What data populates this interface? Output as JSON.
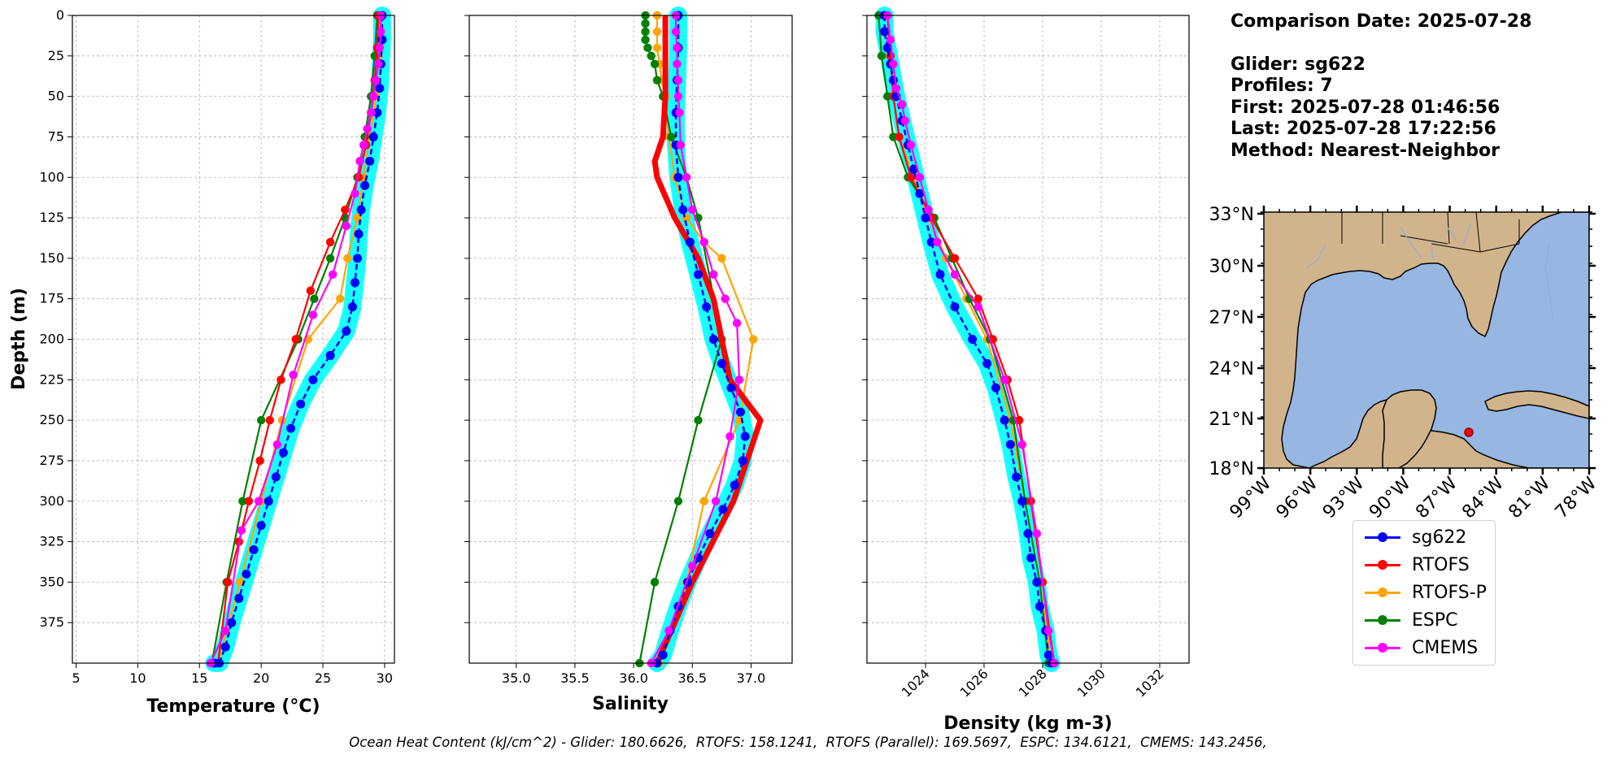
{
  "info": {
    "comparison_date": "Comparison Date: 2025-07-28",
    "glider": "Glider: sg622",
    "profiles": "Profiles: 7",
    "first": "First: 2025-07-28 01:46:56",
    "last": "Last: 2025-07-28 17:22:56",
    "method": "Method: Nearest-Neighbor"
  },
  "footer": "Ocean Heat Content (kJ/cm^2) - Glider: 180.6626,  RTOFS: 158.1241,  RTOFS (Parallel): 169.5697,  ESPC: 134.6121,  CMEMS: 143.2456,",
  "legend": [
    {
      "label": "sg622",
      "color": "#0000ff"
    },
    {
      "label": "RTOFS",
      "color": "#ff0000"
    },
    {
      "label": "RTOFS-P",
      "color": "#ffa500"
    },
    {
      "label": "ESPC",
      "color": "#008000"
    },
    {
      "label": "CMEMS",
      "color": "#ff00ff"
    }
  ],
  "chart_data": [
    {
      "type": "line",
      "xlabel": "Temperature (°C)",
      "ylabel": "Depth (m)",
      "xlim": [
        4.7,
        30.8
      ],
      "ylim": [
        400,
        0
      ],
      "xticks": [
        5,
        10,
        15,
        20,
        25,
        30
      ],
      "yticks": [
        0,
        25,
        50,
        75,
        100,
        125,
        150,
        175,
        200,
        225,
        250,
        275,
        300,
        325,
        350,
        375
      ],
      "grid": true,
      "series": [
        {
          "name": "sg622",
          "color": "#0000ff",
          "band_color": "#00ffff",
          "x": [
            29.8,
            29.8,
            29.7,
            29.6,
            29.4,
            29.1,
            28.8,
            28.4,
            28.1,
            27.9,
            27.8,
            27.6,
            27.4,
            26.9,
            25.6,
            24.2,
            23.2,
            22.4,
            21.8,
            21.2,
            20.6,
            20.0,
            19.4,
            18.8,
            18.2,
            17.6,
            17.1,
            16.6,
            16.2
          ],
          "y": [
            0,
            15,
            30,
            45,
            60,
            75,
            90,
            105,
            120,
            135,
            150,
            165,
            180,
            195,
            210,
            225,
            240,
            255,
            270,
            285,
            300,
            315,
            330,
            345,
            360,
            375,
            390,
            400,
            400
          ]
        },
        {
          "name": "RTOFS",
          "color": "#ff0000",
          "x": [
            29.5,
            29.4,
            29.2,
            28.9,
            28.5,
            27.9,
            26.8,
            25.6,
            24.0,
            22.8,
            21.6,
            20.7,
            19.9,
            19.0,
            18.2,
            17.3,
            16.5
          ],
          "y": [
            0,
            20,
            40,
            60,
            80,
            100,
            120,
            140,
            170,
            200,
            225,
            250,
            275,
            300,
            325,
            350,
            400
          ]
        },
        {
          "name": "RTOFS-P",
          "color": "#ffa500",
          "x": [
            29.6,
            29.5,
            29.3,
            28.8,
            28.3,
            27.8,
            27.0,
            26.4,
            23.8,
            21.7,
            20.0,
            18.3,
            16.5
          ],
          "y": [
            0,
            25,
            50,
            75,
            100,
            125,
            150,
            175,
            200,
            250,
            300,
            350,
            400
          ]
        },
        {
          "name": "ESPC",
          "color": "#008000",
          "x": [
            29.4,
            29.2,
            28.9,
            28.4,
            27.8,
            26.8,
            25.6,
            24.3,
            23.0,
            20.0,
            18.5,
            17.2,
            16.0
          ],
          "y": [
            0,
            25,
            50,
            75,
            100,
            125,
            150,
            175,
            200,
            250,
            300,
            350,
            400
          ]
        },
        {
          "name": "CMEMS",
          "color": "#ff00ff",
          "x": [
            29.7,
            29.7,
            29.6,
            29.5,
            29.3,
            29.1,
            28.9,
            28.6,
            28.3,
            28.0,
            27.6,
            26.9,
            25.8,
            24.2,
            22.6,
            21.3,
            19.8,
            18.4,
            17.1,
            15.9
          ],
          "y": [
            0,
            10,
            20,
            30,
            40,
            50,
            60,
            70,
            80,
            90,
            110,
            130,
            160,
            185,
            222,
            265,
            300,
            318,
            380,
            400
          ]
        }
      ]
    },
    {
      "type": "line",
      "xlabel": "Salinity",
      "xlim": [
        34.6,
        37.35
      ],
      "ylim": [
        400,
        0
      ],
      "xticks": [
        35.0,
        35.5,
        36.0,
        36.5,
        37.0
      ],
      "grid": true,
      "series": [
        {
          "name": "sg622",
          "color": "#0000ff",
          "band_color": "#00ffff",
          "x": [
            36.38,
            36.38,
            36.37,
            36.36,
            36.36,
            36.38,
            36.42,
            36.48,
            36.55,
            36.62,
            36.68,
            36.75,
            36.83,
            36.91,
            36.95,
            36.93,
            36.86,
            36.76,
            36.65,
            36.55,
            36.46,
            36.38,
            36.31,
            36.25,
            36.2
          ],
          "y": [
            0,
            20,
            40,
            60,
            80,
            100,
            120,
            140,
            160,
            180,
            200,
            215,
            230,
            245,
            260,
            275,
            290,
            305,
            320,
            335,
            350,
            365,
            380,
            395,
            400
          ]
        },
        {
          "name": "RTOFS",
          "color": "#ff0000",
          "thick": true,
          "x": [
            36.27,
            36.27,
            36.27,
            36.25,
            36.18,
            36.2,
            36.35,
            36.55,
            36.68,
            36.82,
            37.08,
            36.85,
            36.5,
            36.2
          ],
          "y": [
            0,
            25,
            50,
            75,
            90,
            100,
            125,
            150,
            175,
            225,
            250,
            300,
            350,
            400
          ]
        },
        {
          "name": "RTOFS-P",
          "color": "#ffa500",
          "x": [
            36.2,
            36.2,
            36.2,
            36.22,
            36.24,
            36.27,
            36.3,
            36.35,
            36.45,
            36.6,
            36.75,
            37.02,
            36.9,
            36.6,
            36.45,
            36.22
          ],
          "y": [
            0,
            10,
            20,
            30,
            40,
            50,
            75,
            100,
            125,
            140,
            150,
            200,
            250,
            300,
            350,
            400
          ]
        },
        {
          "name": "ESPC",
          "color": "#008000",
          "x": [
            36.1,
            36.1,
            36.1,
            36.1,
            36.12,
            36.15,
            36.18,
            36.2,
            36.25,
            36.32,
            36.45,
            36.55,
            36.75,
            36.55,
            36.38,
            36.18,
            36.05
          ],
          "y": [
            0,
            5,
            10,
            15,
            20,
            25,
            30,
            40,
            50,
            75,
            100,
            125,
            200,
            250,
            300,
            350,
            400
          ]
        },
        {
          "name": "CMEMS",
          "color": "#ff00ff",
          "x": [
            36.36,
            36.36,
            36.37,
            36.37,
            36.38,
            36.38,
            36.39,
            36.4,
            36.45,
            36.5,
            36.6,
            36.68,
            36.78,
            36.88,
            36.9,
            36.82,
            36.7,
            36.5,
            36.3,
            36.15
          ],
          "y": [
            0,
            10,
            20,
            30,
            40,
            50,
            60,
            80,
            100,
            120,
            140,
            160,
            175,
            190,
            225,
            260,
            300,
            340,
            380,
            400
          ]
        }
      ]
    },
    {
      "type": "line",
      "xlabel": "Density (kg m-3)",
      "xlim": [
        1022.0,
        1033.0
      ],
      "ylim": [
        400,
        0
      ],
      "xticks": [
        1024,
        1026,
        1028,
        1030,
        1032
      ],
      "grid": true,
      "series": [
        {
          "name": "sg622",
          "color": "#0000ff",
          "band_color": "#00ffff",
          "x": [
            1022.6,
            1022.6,
            1022.7,
            1022.8,
            1022.9,
            1023.0,
            1023.2,
            1023.4,
            1023.6,
            1023.8,
            1024.0,
            1024.2,
            1024.5,
            1025.0,
            1025.6,
            1026.1,
            1026.4,
            1026.7,
            1026.9,
            1027.1,
            1027.3,
            1027.5,
            1027.6,
            1027.8,
            1027.9,
            1028.1,
            1028.2,
            1028.3
          ],
          "y": [
            0,
            10,
            20,
            30,
            40,
            50,
            65,
            80,
            95,
            110,
            125,
            140,
            160,
            180,
            200,
            215,
            230,
            250,
            265,
            285,
            300,
            320,
            335,
            350,
            365,
            380,
            395,
            400
          ]
        },
        {
          "name": "RTOFS",
          "color": "#ff0000",
          "x": [
            1022.7,
            1022.8,
            1022.9,
            1023.1,
            1023.5,
            1024.2,
            1025.0,
            1025.8,
            1026.3,
            1026.8,
            1027.2,
            1027.6,
            1028.0,
            1028.4
          ],
          "y": [
            0,
            25,
            50,
            75,
            100,
            125,
            150,
            175,
            200,
            225,
            250,
            300,
            350,
            400
          ]
        },
        {
          "name": "RTOFS-P",
          "color": "#ffa500",
          "x": [
            1022.7,
            1022.8,
            1022.9,
            1023.1,
            1023.6,
            1024.1,
            1024.7,
            1025.4,
            1026.1,
            1026.9,
            1027.4,
            1027.9,
            1028.3
          ],
          "y": [
            0,
            25,
            50,
            75,
            100,
            125,
            150,
            175,
            200,
            250,
            300,
            350,
            400
          ]
        },
        {
          "name": "ESPC",
          "color": "#008000",
          "x": [
            1022.4,
            1022.5,
            1022.7,
            1022.9,
            1023.4,
            1024.3,
            1024.9,
            1025.5,
            1026.2,
            1027.0,
            1027.4,
            1027.9,
            1028.2
          ],
          "y": [
            0,
            25,
            50,
            75,
            100,
            125,
            150,
            175,
            200,
            250,
            300,
            350,
            400
          ]
        },
        {
          "name": "CMEMS",
          "color": "#ff00ff",
          "x": [
            1022.7,
            1022.8,
            1022.9,
            1023.0,
            1023.2,
            1023.3,
            1023.5,
            1023.8,
            1024.1,
            1024.4,
            1025.0,
            1025.8,
            1026.7,
            1027.3,
            1027.8,
            1028.2,
            1028.4
          ],
          "y": [
            0,
            15,
            30,
            45,
            55,
            65,
            80,
            100,
            120,
            140,
            160,
            180,
            225,
            265,
            320,
            380,
            400
          ]
        }
      ]
    }
  ],
  "map": {
    "lat_ticks": [
      "33°N",
      "30°N",
      "27°N",
      "24°N",
      "21°N",
      "18°N"
    ],
    "lon_ticks": [
      "99°W",
      "96°W",
      "93°W",
      "90°W",
      "87°W",
      "84°W",
      "81°W",
      "78°W"
    ],
    "land_color": "#d2b48c",
    "ocean_color": "#97b6e1",
    "glider_marker_color": "#ff0000",
    "glider_lon": -85.2,
    "glider_lat": 20.2
  }
}
